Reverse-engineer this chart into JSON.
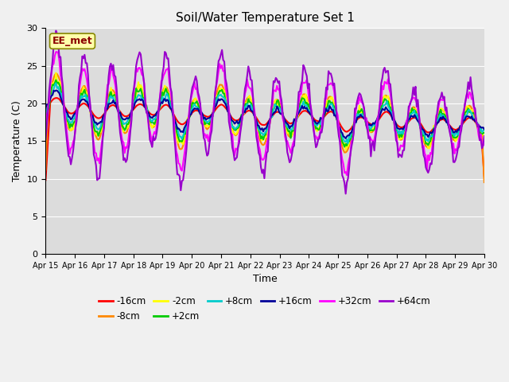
{
  "title": "Soil/Water Temperature Set 1",
  "xlabel": "Time",
  "ylabel": "Temperature (C)",
  "ylim": [
    0,
    30
  ],
  "xlim": [
    0,
    360
  ],
  "annotation": "EE_met",
  "plot_bg_color": "#dcdcdc",
  "fig_bg_color": "#f0f0f0",
  "series_order": [
    "-16cm",
    "-8cm",
    "-2cm",
    "+2cm",
    "+8cm",
    "+16cm",
    "+32cm",
    "+64cm"
  ],
  "series_colors": {
    "-16cm": "#ff0000",
    "-8cm": "#ff8800",
    "-2cm": "#ffff00",
    "+2cm": "#00cc00",
    "+8cm": "#00cccc",
    "+16cm": "#000099",
    "+32cm": "#ff00ff",
    "+64cm": "#9900cc"
  },
  "series_lw": {
    "-16cm": 1.5,
    "-8cm": 1.5,
    "-2cm": 1.5,
    "+2cm": 1.5,
    "+8cm": 1.5,
    "+16cm": 1.5,
    "+32cm": 1.5,
    "+64cm": 1.5
  },
  "tick_labels": [
    "Apr 15",
    "Apr 16",
    "Apr 17",
    "Apr 18",
    "Apr 19",
    "Apr 20",
    "Apr 21",
    "Apr 22",
    "Apr 23",
    "Apr 24",
    "Apr 25",
    "Apr 26",
    "Apr 27",
    "Apr 28",
    "Apr 29",
    "Apr 30"
  ],
  "tick_positions": [
    0,
    24,
    48,
    72,
    96,
    120,
    144,
    168,
    192,
    216,
    240,
    264,
    288,
    312,
    336,
    360
  ],
  "yticks": [
    0,
    5,
    10,
    15,
    20,
    25,
    30
  ]
}
